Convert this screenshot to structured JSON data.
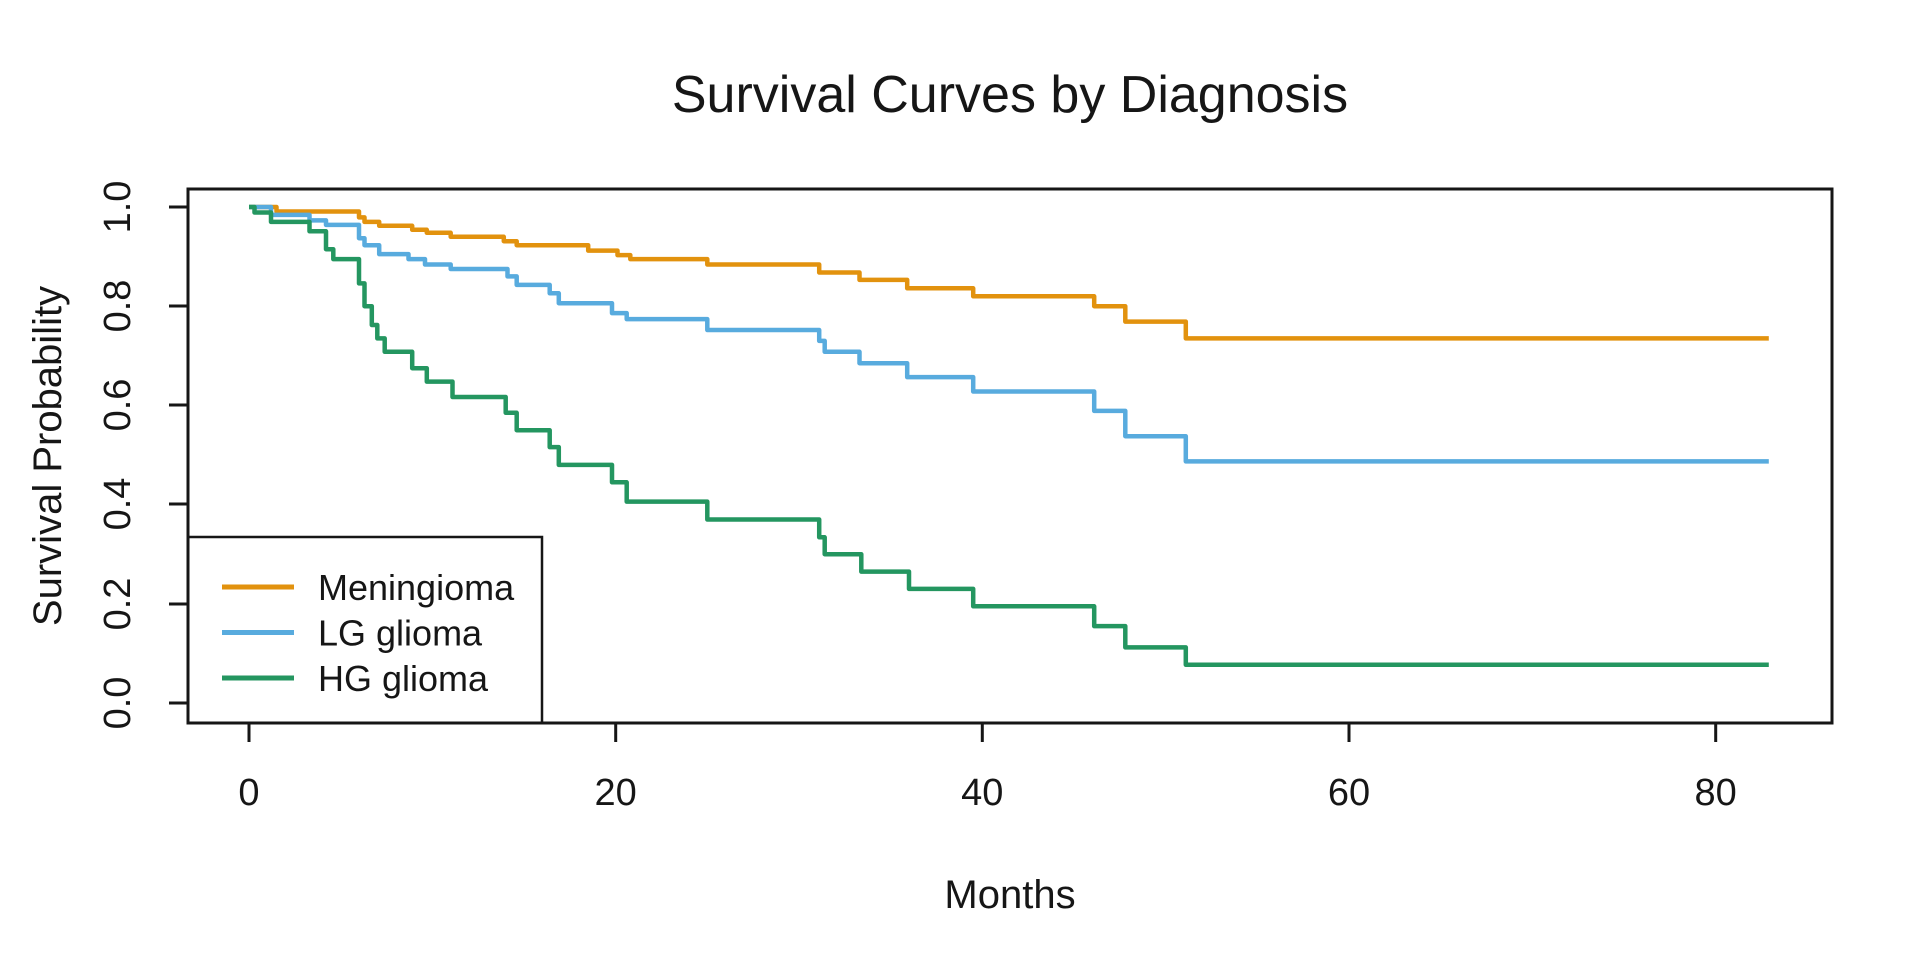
{
  "title": "Survival Curves by Diagnosis",
  "x_axis": {
    "label": "Months",
    "ticks": [
      "0",
      "20",
      "40",
      "60",
      "80"
    ]
  },
  "y_axis": {
    "label": "Survival Probability",
    "ticks": [
      "1.0",
      "0.8",
      "0.6",
      "0.4",
      "0.2",
      "0.0"
    ]
  },
  "legend": {
    "items": [
      {
        "label": "Meningioma",
        "color": "#E2920E"
      },
      {
        "label": "LG glioma",
        "color": "#58ABDE"
      },
      {
        "label": "HG glioma",
        "color": "#249660"
      }
    ]
  },
  "chart_data": {
    "type": "line",
    "step": true,
    "title": "Survival Curves by Diagnosis",
    "xlabel": "Months",
    "ylabel": "Survival Probability",
    "xlim": [
      0,
      86.5
    ],
    "ylim": [
      0,
      1
    ],
    "x_tick_values": [
      0,
      20,
      40,
      60,
      80
    ],
    "y_tick_values": [
      1.0,
      0.8,
      0.6,
      0.4,
      0.2,
      0.0
    ],
    "grid": false,
    "legend_position": "bottom-left",
    "curve_end_month": 82.9,
    "series": [
      {
        "name": "Meningioma",
        "color": "#E2920E",
        "points": [
          [
            0,
            1.0
          ],
          [
            1.5,
            0.991
          ],
          [
            6.0,
            0.979
          ],
          [
            6.3,
            0.97
          ],
          [
            7.1,
            0.962
          ],
          [
            8.9,
            0.954
          ],
          [
            9.7,
            0.948
          ],
          [
            11.0,
            0.94
          ],
          [
            13.9,
            0.931
          ],
          [
            14.6,
            0.923
          ],
          [
            18.5,
            0.912
          ],
          [
            20.1,
            0.903
          ],
          [
            20.8,
            0.895
          ],
          [
            25.0,
            0.884
          ],
          [
            31.1,
            0.868
          ],
          [
            33.3,
            0.853
          ],
          [
            35.9,
            0.836
          ],
          [
            39.5,
            0.82
          ],
          [
            46.1,
            0.8
          ],
          [
            47.8,
            0.769
          ],
          [
            51.1,
            0.735
          ]
        ]
      },
      {
        "name": "LG glioma",
        "color": "#58ABDE",
        "points": [
          [
            0,
            1.0
          ],
          [
            1.2,
            0.984
          ],
          [
            3.3,
            0.973
          ],
          [
            4.2,
            0.964
          ],
          [
            6.0,
            0.937
          ],
          [
            6.3,
            0.923
          ],
          [
            7.1,
            0.905
          ],
          [
            8.7,
            0.895
          ],
          [
            9.6,
            0.884
          ],
          [
            11.0,
            0.875
          ],
          [
            14.1,
            0.86
          ],
          [
            14.6,
            0.843
          ],
          [
            16.4,
            0.826
          ],
          [
            16.9,
            0.806
          ],
          [
            19.8,
            0.786
          ],
          [
            20.6,
            0.774
          ],
          [
            25.0,
            0.752
          ],
          [
            31.1,
            0.73
          ],
          [
            31.4,
            0.708
          ],
          [
            33.3,
            0.685
          ],
          [
            35.9,
            0.657
          ],
          [
            39.5,
            0.628
          ],
          [
            46.1,
            0.589
          ],
          [
            47.8,
            0.538
          ],
          [
            51.1,
            0.487
          ]
        ]
      },
      {
        "name": "HG glioma",
        "color": "#249660",
        "points": [
          [
            0,
            1.0
          ],
          [
            0.3,
            0.989
          ],
          [
            1.2,
            0.97
          ],
          [
            3.3,
            0.951
          ],
          [
            4.2,
            0.915
          ],
          [
            4.6,
            0.895
          ],
          [
            6.0,
            0.846
          ],
          [
            6.3,
            0.8
          ],
          [
            6.7,
            0.762
          ],
          [
            7.0,
            0.735
          ],
          [
            7.4,
            0.708
          ],
          [
            8.9,
            0.675
          ],
          [
            9.7,
            0.648
          ],
          [
            11.1,
            0.617
          ],
          [
            14.0,
            0.585
          ],
          [
            14.6,
            0.55
          ],
          [
            16.4,
            0.516
          ],
          [
            16.9,
            0.48
          ],
          [
            19.8,
            0.445
          ],
          [
            20.6,
            0.406
          ],
          [
            25.0,
            0.37
          ],
          [
            31.1,
            0.334
          ],
          [
            31.4,
            0.3
          ],
          [
            33.4,
            0.265
          ],
          [
            36.0,
            0.23
          ],
          [
            39.5,
            0.195
          ],
          [
            46.1,
            0.155
          ],
          [
            47.8,
            0.112
          ],
          [
            51.1,
            0.077
          ]
        ]
      }
    ]
  }
}
